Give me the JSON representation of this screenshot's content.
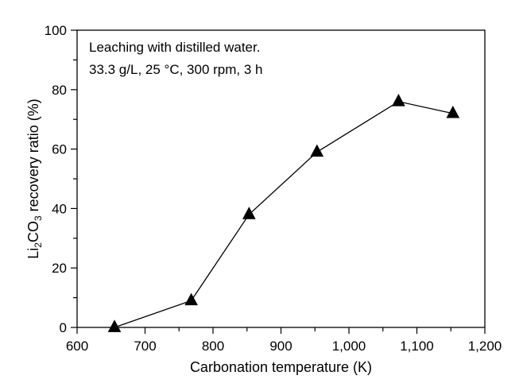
{
  "chart_data": {
    "type": "line",
    "xlabel": "Carbonation temperature (K)",
    "ylabel": {
      "prefix": "Li",
      "sub1": "2",
      "mid": "CO",
      "sub2": "3",
      "suffix": " recovery ratio (%)"
    },
    "annotations": [
      "Leaching with distilled water.",
      "33.3 g/L, 25 °C, 300 rpm, 3 h"
    ],
    "xlim": [
      600,
      1200
    ],
    "ylim": [
      0,
      100
    ],
    "x_ticks": [
      600,
      700,
      800,
      900,
      1000,
      1100,
      1200
    ],
    "x_tick_labels": [
      "600",
      "700",
      "800",
      "900",
      "1,000",
      "1,100",
      "1,200"
    ],
    "x_minor_ticks": [
      650,
      750,
      850,
      950,
      1050,
      1150
    ],
    "y_ticks": [
      0,
      20,
      40,
      60,
      80,
      100
    ],
    "y_tick_labels": [
      "0",
      "20",
      "40",
      "60",
      "80",
      "100"
    ],
    "y_minor_ticks": [
      10,
      30,
      50,
      70,
      90
    ],
    "grid": false,
    "legend": "none",
    "marker": "triangle",
    "color": "#000000",
    "series": [
      {
        "x": [
          655,
          768,
          853,
          953,
          1073,
          1153
        ],
        "y": [
          0,
          9,
          38,
          59,
          76,
          72
        ]
      }
    ]
  }
}
